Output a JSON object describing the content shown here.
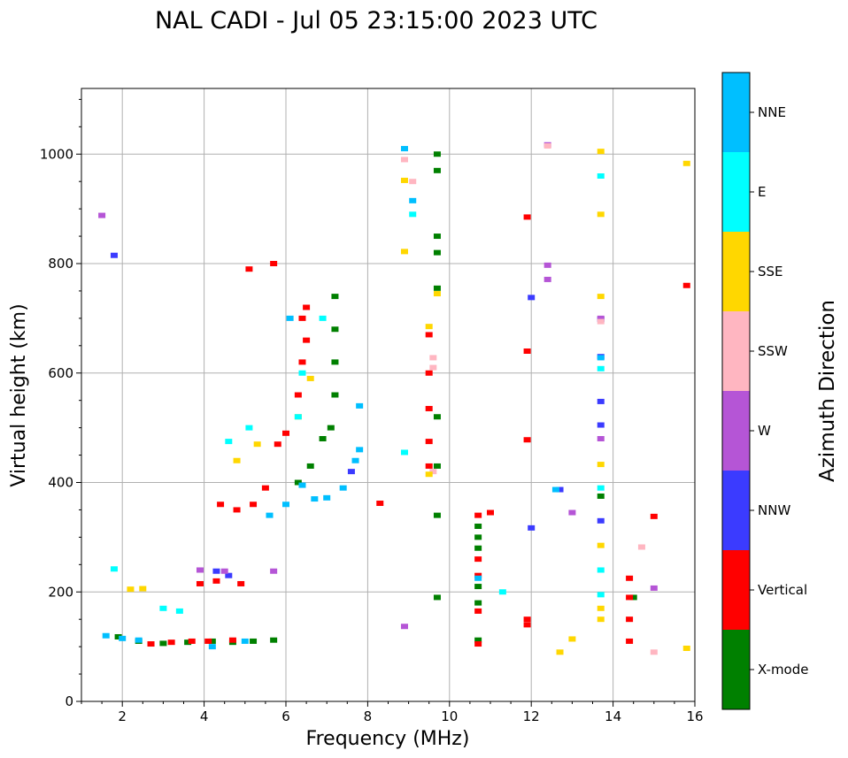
{
  "chart_data": {
    "type": "scatter",
    "title": "NAL CADI - Jul 05 23:15:00 2023 UTC",
    "xlabel": "Frequency (MHz)",
    "ylabel": "Virtual height (km)",
    "xlim": [
      1,
      16
    ],
    "ylim": [
      0,
      1120
    ],
    "xticks": [
      2,
      4,
      6,
      8,
      10,
      12,
      14,
      16
    ],
    "yticks": [
      0,
      200,
      400,
      600,
      800,
      1000
    ],
    "grid": true,
    "colorbar": {
      "label": "Azimuth Direction",
      "categories": [
        {
          "name": "X-mode",
          "color": "#008000"
        },
        {
          "name": "Vertical",
          "color": "#ff0000"
        },
        {
          "name": "NNW",
          "color": "#3b3bff"
        },
        {
          "name": "W",
          "color": "#b555d6"
        },
        {
          "name": "SSW",
          "color": "#ffb6c1"
        },
        {
          "name": "SSE",
          "color": "#ffd700"
        },
        {
          "name": "E",
          "color": "#00ffff"
        },
        {
          "name": "NNE",
          "color": "#00bfff"
        }
      ]
    },
    "series": [
      {
        "name": "X-mode",
        "points": [
          [
            1.9,
            118
          ],
          [
            2.4,
            110
          ],
          [
            3.0,
            106
          ],
          [
            3.6,
            108
          ],
          [
            4.2,
            110
          ],
          [
            4.7,
            108
          ],
          [
            5.2,
            110
          ],
          [
            5.7,
            112
          ],
          [
            6.3,
            400
          ],
          [
            6.6,
            430
          ],
          [
            6.9,
            480
          ],
          [
            7.1,
            500
          ],
          [
            7.2,
            560
          ],
          [
            7.2,
            620
          ],
          [
            7.2,
            680
          ],
          [
            7.2,
            740
          ],
          [
            9.7,
            1000
          ],
          [
            9.7,
            970
          ],
          [
            9.7,
            850
          ],
          [
            9.7,
            820
          ],
          [
            9.7,
            755
          ],
          [
            9.7,
            520
          ],
          [
            9.7,
            430
          ],
          [
            9.7,
            340
          ],
          [
            9.7,
            190
          ],
          [
            10.7,
            320
          ],
          [
            10.7,
            300
          ],
          [
            10.7,
            280
          ],
          [
            10.7,
            210
          ],
          [
            10.7,
            180
          ],
          [
            10.7,
            112
          ],
          [
            13.7,
            375
          ],
          [
            14.5,
            190
          ]
        ]
      },
      {
        "name": "Vertical",
        "points": [
          [
            2.7,
            105
          ],
          [
            3.2,
            108
          ],
          [
            3.7,
            110
          ],
          [
            4.1,
            110
          ],
          [
            4.7,
            112
          ],
          [
            3.9,
            215
          ],
          [
            4.3,
            220
          ],
          [
            4.9,
            215
          ],
          [
            4.4,
            360
          ],
          [
            4.8,
            350
          ],
          [
            5.2,
            360
          ],
          [
            5.5,
            390
          ],
          [
            5.8,
            470
          ],
          [
            6.0,
            490
          ],
          [
            6.3,
            560
          ],
          [
            6.4,
            620
          ],
          [
            6.5,
            660
          ],
          [
            6.4,
            700
          ],
          [
            6.5,
            720
          ],
          [
            5.7,
            800
          ],
          [
            5.1,
            790
          ],
          [
            8.3,
            362
          ],
          [
            9.5,
            670
          ],
          [
            9.5,
            600
          ],
          [
            9.5,
            535
          ],
          [
            9.5,
            475
          ],
          [
            9.5,
            430
          ],
          [
            10.7,
            340
          ],
          [
            10.7,
            260
          ],
          [
            10.7,
            230
          ],
          [
            10.7,
            165
          ],
          [
            10.7,
            105
          ],
          [
            11.0,
            345
          ],
          [
            11.9,
            885
          ],
          [
            11.9,
            640
          ],
          [
            11.9,
            478
          ],
          [
            11.9,
            150
          ],
          [
            11.9,
            140
          ],
          [
            14.4,
            225
          ],
          [
            14.4,
            190
          ],
          [
            14.4,
            150
          ],
          [
            14.4,
            110
          ],
          [
            15.0,
            338
          ],
          [
            15.8,
            760
          ]
        ]
      },
      {
        "name": "NNW",
        "points": [
          [
            1.8,
            815
          ],
          [
            4.3,
            238
          ],
          [
            4.6,
            230
          ],
          [
            7.6,
            420
          ],
          [
            12.0,
            738
          ],
          [
            12.0,
            317
          ],
          [
            12.7,
            387
          ],
          [
            13.7,
            630
          ],
          [
            13.7,
            548
          ],
          [
            13.7,
            505
          ],
          [
            13.7,
            330
          ],
          [
            13.7,
            698
          ]
        ]
      },
      {
        "name": "W",
        "points": [
          [
            1.5,
            888
          ],
          [
            3.9,
            240
          ],
          [
            4.5,
            238
          ],
          [
            5.7,
            238
          ],
          [
            8.9,
            137
          ],
          [
            12.4,
            1017
          ],
          [
            12.4,
            797
          ],
          [
            12.4,
            771
          ],
          [
            13.0,
            345
          ],
          [
            13.7,
            480
          ],
          [
            13.7,
            700
          ],
          [
            15.0,
            207
          ]
        ]
      },
      {
        "name": "SSW",
        "points": [
          [
            8.9,
            990
          ],
          [
            9.1,
            950
          ],
          [
            9.6,
            628
          ],
          [
            9.6,
            610
          ],
          [
            9.6,
            420
          ],
          [
            12.4,
            1015
          ],
          [
            13.7,
            694
          ],
          [
            14.7,
            282
          ],
          [
            15.0,
            90
          ]
        ]
      },
      {
        "name": "SSE",
        "points": [
          [
            2.2,
            205
          ],
          [
            2.5,
            206
          ],
          [
            4.8,
            440
          ],
          [
            5.3,
            470
          ],
          [
            6.3,
            520
          ],
          [
            6.6,
            590
          ],
          [
            8.9,
            952
          ],
          [
            8.9,
            822
          ],
          [
            9.5,
            685
          ],
          [
            9.5,
            415
          ],
          [
            9.7,
            745
          ],
          [
            12.7,
            90
          ],
          [
            13.0,
            114
          ],
          [
            13.7,
            1005
          ],
          [
            13.7,
            890
          ],
          [
            13.7,
            740
          ],
          [
            13.7,
            433
          ],
          [
            13.7,
            285
          ],
          [
            13.7,
            170
          ],
          [
            13.7,
            150
          ],
          [
            15.8,
            983
          ],
          [
            15.8,
            97
          ]
        ]
      },
      {
        "name": "E",
        "points": [
          [
            1.8,
            242
          ],
          [
            3.0,
            170
          ],
          [
            3.4,
            165
          ],
          [
            4.6,
            475
          ],
          [
            5.1,
            500
          ],
          [
            6.3,
            520
          ],
          [
            6.4,
            600
          ],
          [
            6.9,
            700
          ],
          [
            8.9,
            455
          ],
          [
            9.1,
            890
          ],
          [
            11.3,
            200
          ],
          [
            13.7,
            960
          ],
          [
            13.7,
            608
          ],
          [
            13.7,
            390
          ],
          [
            13.7,
            240
          ],
          [
            13.7,
            195
          ]
        ]
      },
      {
        "name": "NNE",
        "points": [
          [
            1.6,
            120
          ],
          [
            2.0,
            115
          ],
          [
            2.4,
            112
          ],
          [
            4.2,
            100
          ],
          [
            5.0,
            110
          ],
          [
            5.6,
            340
          ],
          [
            6.0,
            360
          ],
          [
            6.4,
            395
          ],
          [
            6.7,
            370
          ],
          [
            7.0,
            372
          ],
          [
            7.4,
            390
          ],
          [
            7.7,
            440
          ],
          [
            7.8,
            460
          ],
          [
            7.8,
            540
          ],
          [
            6.1,
            700
          ],
          [
            8.9,
            1010
          ],
          [
            9.1,
            915
          ],
          [
            10.7,
            225
          ],
          [
            12.6,
            387
          ],
          [
            13.7,
            628
          ]
        ]
      }
    ]
  }
}
